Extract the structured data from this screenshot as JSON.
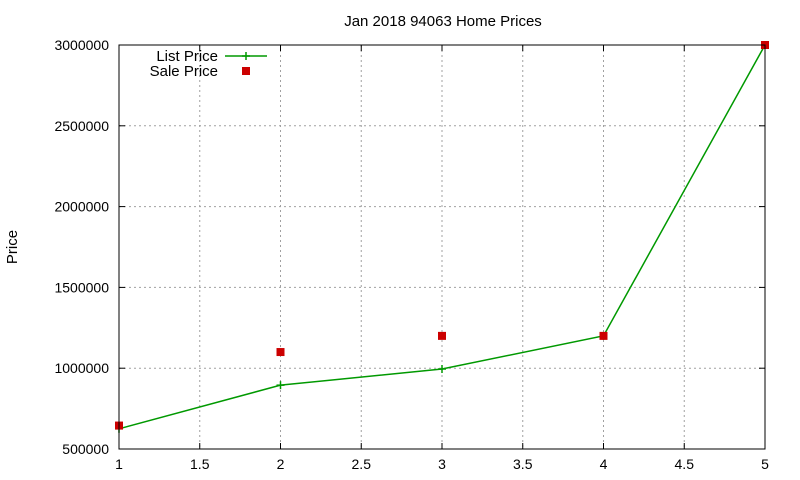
{
  "chart_data": {
    "type": "line",
    "title": "Jan 2018 94063 Home Prices",
    "xlabel": "",
    "ylabel": "Price",
    "xlim": [
      1,
      5
    ],
    "ylim": [
      500000,
      3000000
    ],
    "x_ticks": [
      "1",
      "1.5",
      "2",
      "2.5",
      "3",
      "3.5",
      "4",
      "4.5",
      "5"
    ],
    "y_ticks": [
      "500000",
      "1000000",
      "1500000",
      "2000000",
      "2500000",
      "3000000"
    ],
    "grid": true,
    "legend_position": "top-left",
    "series": [
      {
        "name": "List Price",
        "style": "linespoints",
        "marker": "plus",
        "color": "#009900",
        "x": [
          1,
          2,
          3,
          4,
          5
        ],
        "y": [
          625000,
          895000,
          995000,
          1200000,
          3000000
        ]
      },
      {
        "name": "Sale Price",
        "style": "points",
        "marker": "square",
        "color": "#cc0000",
        "x": [
          1,
          2,
          3,
          4,
          5
        ],
        "y": [
          645000,
          1100000,
          1200000,
          1200000,
          3000000
        ]
      }
    ]
  }
}
